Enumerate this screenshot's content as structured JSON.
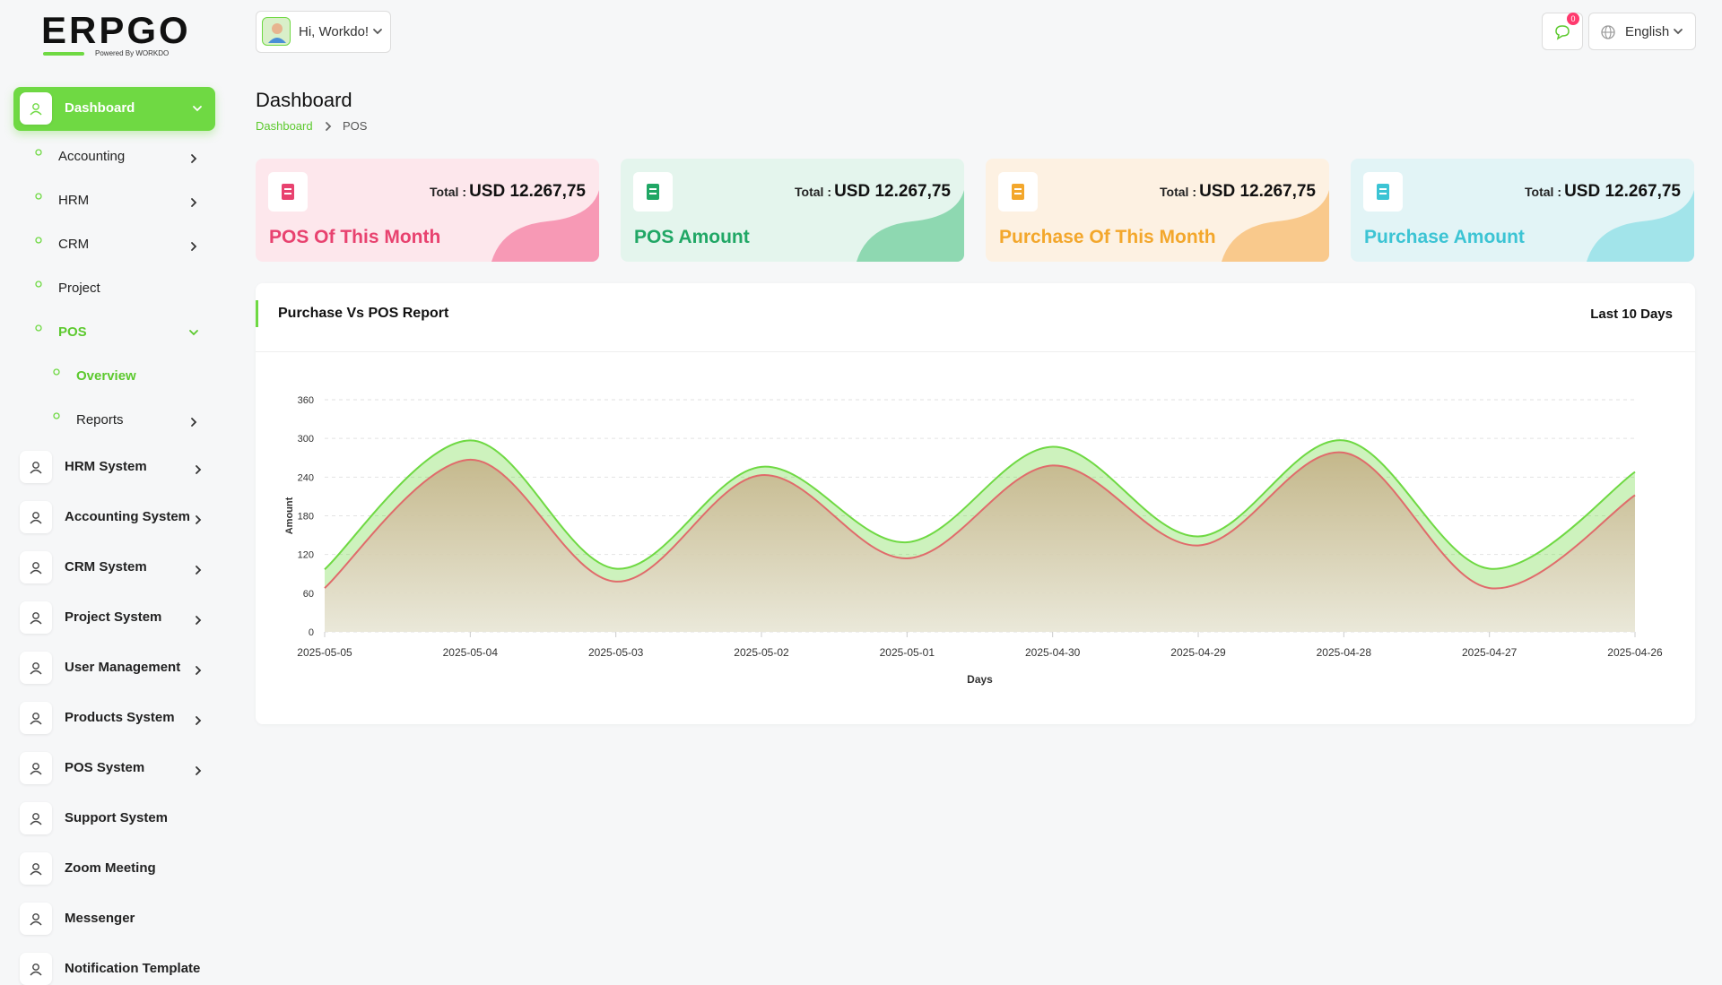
{
  "logo": {
    "brand": "ERPGO",
    "tagline": "Powered By WORKDO"
  },
  "header": {
    "greeting": "Hi, Workdo!",
    "notifications": "0",
    "language": "English"
  },
  "sidebar": {
    "items": [
      {
        "label": "Dashboard",
        "active": true,
        "children": [
          {
            "label": "Accounting",
            "collapsed": true
          },
          {
            "label": "HRM",
            "collapsed": true
          },
          {
            "label": "CRM",
            "collapsed": true
          },
          {
            "label": "Project"
          },
          {
            "label": "POS",
            "active": true,
            "children": [
              {
                "label": "Overview",
                "active": true
              },
              {
                "label": "Reports",
                "collapsed": true
              }
            ]
          }
        ]
      },
      {
        "label": "HRM System",
        "collapsed": true
      },
      {
        "label": "Accounting System",
        "collapsed": true
      },
      {
        "label": "CRM System",
        "collapsed": true
      },
      {
        "label": "Project System",
        "collapsed": true
      },
      {
        "label": "User Management",
        "collapsed": true
      },
      {
        "label": "Products System",
        "collapsed": true
      },
      {
        "label": "POS System",
        "collapsed": true
      },
      {
        "label": "Support System"
      },
      {
        "label": "Zoom Meeting"
      },
      {
        "label": "Messenger"
      },
      {
        "label": "Notification Template"
      }
    ]
  },
  "page": {
    "title": "Dashboard",
    "breadcrumb": [
      "Dashboard",
      "POS"
    ]
  },
  "cards": [
    {
      "title": "POS Of This Month",
      "total_label": "Total :",
      "amount": "USD 12.267,75",
      "color": "#e8426f",
      "background": "#fde7ec",
      "wave": "#f799b5"
    },
    {
      "title": "POS Amount",
      "total_label": "Total :",
      "amount": "USD 12.267,75",
      "color": "#20a765",
      "background": "#e4f5ed",
      "wave": "#8ed8b1"
    },
    {
      "title": "Purchase Of This Month",
      "total_label": "Total :",
      "amount": "USD 12.267,75",
      "color": "#f3a72c",
      "background": "#fdf1e2",
      "wave": "#f9c98c"
    },
    {
      "title": "Purchase Amount",
      "total_label": "Total :",
      "amount": "USD 12.267,75",
      "color": "#3cc4d4",
      "background": "#e2f4f6",
      "wave": "#a2e4ea"
    }
  ],
  "chart_data": {
    "type": "area",
    "title": "Purchase Vs POS Report",
    "period": "Last 10 Days",
    "x_label": "Days",
    "y_label": "Amount",
    "categories": [
      "2025-05-05",
      "2025-05-04",
      "2025-05-03",
      "2025-05-02",
      "2025-05-01",
      "2025-04-30",
      "2025-04-29",
      "2025-04-28",
      "2025-04-27",
      "2025-04-26"
    ],
    "series": [
      {
        "color": "#6fd943",
        "values": [
          97,
          297,
          98,
          256,
          139,
          287,
          148,
          297,
          98,
          248
        ]
      },
      {
        "color": "#e06b6b",
        "values": [
          68,
          267,
          78,
          243,
          114,
          258,
          134,
          278,
          68,
          212
        ]
      }
    ],
    "ylim": [
      0,
      360
    ],
    "yticks": [
      0,
      60,
      120,
      180,
      240,
      300,
      360
    ],
    "grid": true
  }
}
